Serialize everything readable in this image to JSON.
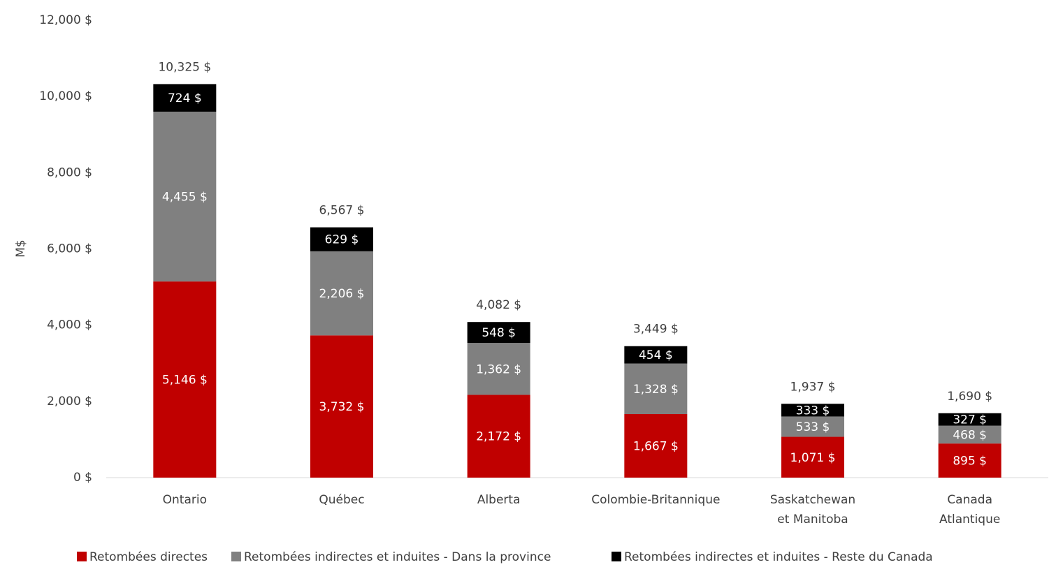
{
  "chart_data": {
    "type": "stacked_bar",
    "y_label": "M$",
    "categories": [
      "Ontario",
      "Québec",
      "Alberta",
      "Colombie-Britannique",
      "Saskatchewan\net Manitoba",
      "Canada\nAtlantique"
    ],
    "series": [
      {
        "name": "Retombées directes",
        "color": "#c00000",
        "values": [
          5146,
          3732,
          2172,
          1667,
          1071,
          895
        ],
        "value_labels": [
          "5,146 $",
          "3,732 $",
          "2,172 $",
          "1,667 $",
          "1,071 $",
          "895 $"
        ]
      },
      {
        "name": "Retombées indirectes et induites - Dans la province",
        "color": "#808080",
        "values": [
          4455,
          2206,
          1362,
          1328,
          533,
          468
        ],
        "value_labels": [
          "4,455 $",
          "2,206 $",
          "1,362 $",
          "1,328 $",
          "533 $",
          "468 $"
        ]
      },
      {
        "name": "Retombées indirectes et induites - Reste du Canada",
        "color": "#000000",
        "values": [
          724,
          629,
          548,
          454,
          333,
          327
        ],
        "value_labels": [
          "724 $",
          "629 $",
          "548 $",
          "454 $",
          "333 $",
          "327 $"
        ]
      }
    ],
    "totals": [
      10325,
      6567,
      4082,
      3449,
      1937,
      1690
    ],
    "total_labels": [
      "10,325 $",
      "6,567 $",
      "4,082 $",
      "3,449 $",
      "1,937 $",
      "1,690 $"
    ],
    "ylim": [
      0,
      12000
    ],
    "yticks": [
      {
        "value": 0,
        "label": "0 $"
      },
      {
        "value": 2000,
        "label": "2,000 $"
      },
      {
        "value": 4000,
        "label": "4,000 $"
      },
      {
        "value": 6000,
        "label": "6,000 $"
      },
      {
        "value": 8000,
        "label": "8,000 $"
      },
      {
        "value": 10000,
        "label": "10,000 $"
      },
      {
        "value": 12000,
        "label": "12,000 $"
      }
    ],
    "grid": false,
    "legend": "bottom"
  }
}
